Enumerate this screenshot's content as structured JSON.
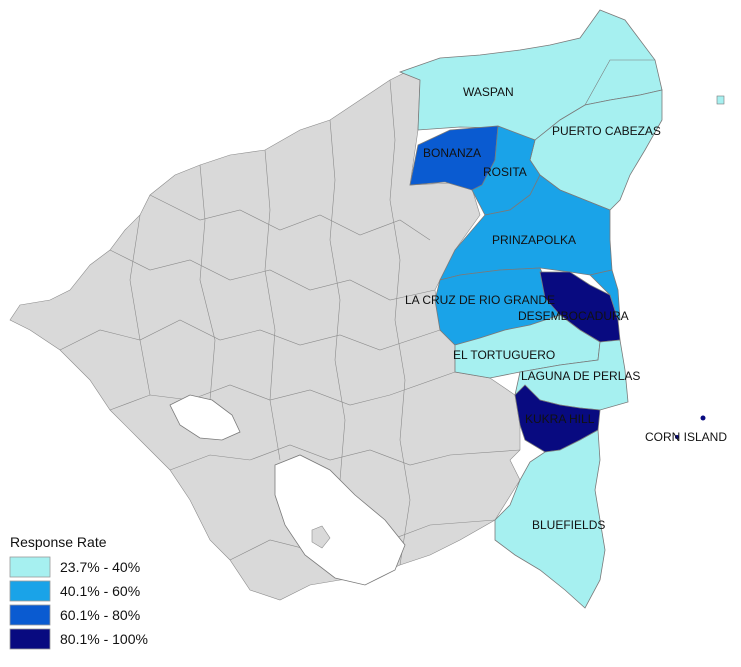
{
  "legend": {
    "title": "Response Rate",
    "classes": [
      {
        "label": "23.7% - 40%",
        "color": "#a6f0f0"
      },
      {
        "label": "40.1% - 60%",
        "color": "#1aa3e8"
      },
      {
        "label": "60.1% - 80%",
        "color": "#0a5bd1"
      },
      {
        "label": "80.1% - 100%",
        "color": "#080a80"
      }
    ]
  },
  "regions": {
    "waspan": "WASPAN",
    "puerto_cabezas": "PUERTO CABEZAS",
    "bonanza": "BONANZA",
    "rosita": "ROSITA",
    "prinzapolka": "PRINZAPOLKA",
    "la_cruz": "LA CRUZ DE RIO GRANDE",
    "desembocadura": "DESEMBOCADURA",
    "el_tortuguero": "EL TORTUGUERO",
    "laguna_de_perlas": "LAGUNA DE PERLAS",
    "kukra_hill": "KUKRA HILL",
    "corn_island": "CORN ISLAND",
    "bluefields": "BLUEFIELDS"
  },
  "colors": {
    "base": "#d9d9d9",
    "border": "#8c8c8c",
    "water": "#ffffff"
  }
}
